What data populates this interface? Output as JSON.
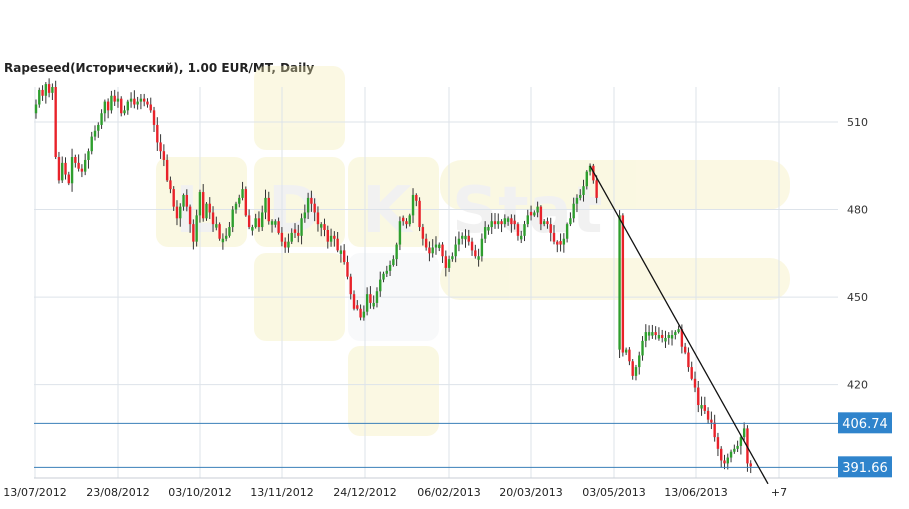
{
  "chart_data": {
    "type": "candlestick",
    "title": "Rapeseed(Исторический), 1.00 EUR/MT, Daily",
    "watermark": "LDK Stat",
    "y_ticks": [
      420,
      450,
      480,
      510
    ],
    "ylim": [
      388,
      522
    ],
    "x_ticks": [
      "13/07/2012",
      "23/08/2012",
      "03/10/2012",
      "13/11/2012",
      "24/12/2012",
      "06/02/2013",
      "20/03/2013",
      "03/05/2013",
      "13/06/2013",
      "+7"
    ],
    "grid": true,
    "horizontal_levels": [
      {
        "label": "406.74",
        "value": 406.74
      },
      {
        "label": "391.66",
        "value": 391.66
      }
    ],
    "trendline": {
      "start": {
        "date": "03/05/2013",
        "value": 495
      },
      "end": {
        "date": "+7",
        "value": 386
      }
    },
    "colors": {
      "up": "#2e9e2e",
      "down": "#e8222a",
      "level_line": "#3a7fb8",
      "level_label_bg": "#2f84cc",
      "grid": "#dde3ea"
    },
    "closes": [
      516,
      521,
      519,
      523,
      520,
      522,
      498,
      490,
      496,
      492,
      489,
      498,
      496,
      494,
      493,
      497,
      500,
      505,
      507,
      509,
      513,
      517,
      514,
      519,
      517,
      518,
      513,
      514,
      517,
      518,
      516,
      517,
      518,
      517,
      516,
      514,
      509,
      503,
      500,
      497,
      490,
      487,
      481,
      477,
      481,
      485,
      481,
      475,
      469,
      478,
      486,
      477,
      482,
      479,
      475,
      475,
      470,
      470,
      471,
      474,
      480,
      482,
      484,
      487,
      478,
      474,
      474,
      477,
      474,
      479,
      484,
      476,
      476,
      476,
      472,
      469,
      467,
      469,
      472,
      472,
      471,
      477,
      479,
      484,
      482,
      479,
      475,
      475,
      473,
      469,
      471,
      470,
      466,
      466,
      462,
      457,
      451,
      446,
      446,
      443,
      445,
      451,
      448,
      448,
      452,
      456,
      458,
      459,
      461,
      463,
      468,
      476,
      476,
      475,
      478,
      485,
      483,
      474,
      470,
      467,
      465,
      467,
      468,
      468,
      464,
      460,
      463,
      464,
      468,
      470,
      471,
      471,
      469,
      466,
      464,
      464,
      470,
      474,
      474,
      476,
      475,
      476,
      475,
      477,
      477,
      475,
      475,
      471,
      471,
      475,
      478,
      478,
      479,
      481,
      475,
      476,
      475,
      472,
      469,
      468,
      468,
      470,
      475,
      477,
      482,
      484,
      485,
      488,
      493,
      495,
      490,
      484,
      478,
      431,
      432,
      428,
      423,
      426,
      430,
      435,
      438,
      438,
      438,
      437,
      437,
      436,
      436,
      437,
      437,
      438,
      439,
      433,
      431,
      426,
      422,
      419,
      413,
      413,
      411,
      408,
      407,
      402,
      398,
      394,
      393,
      395,
      397,
      398,
      399,
      402,
      405,
      393,
      392
    ]
  }
}
